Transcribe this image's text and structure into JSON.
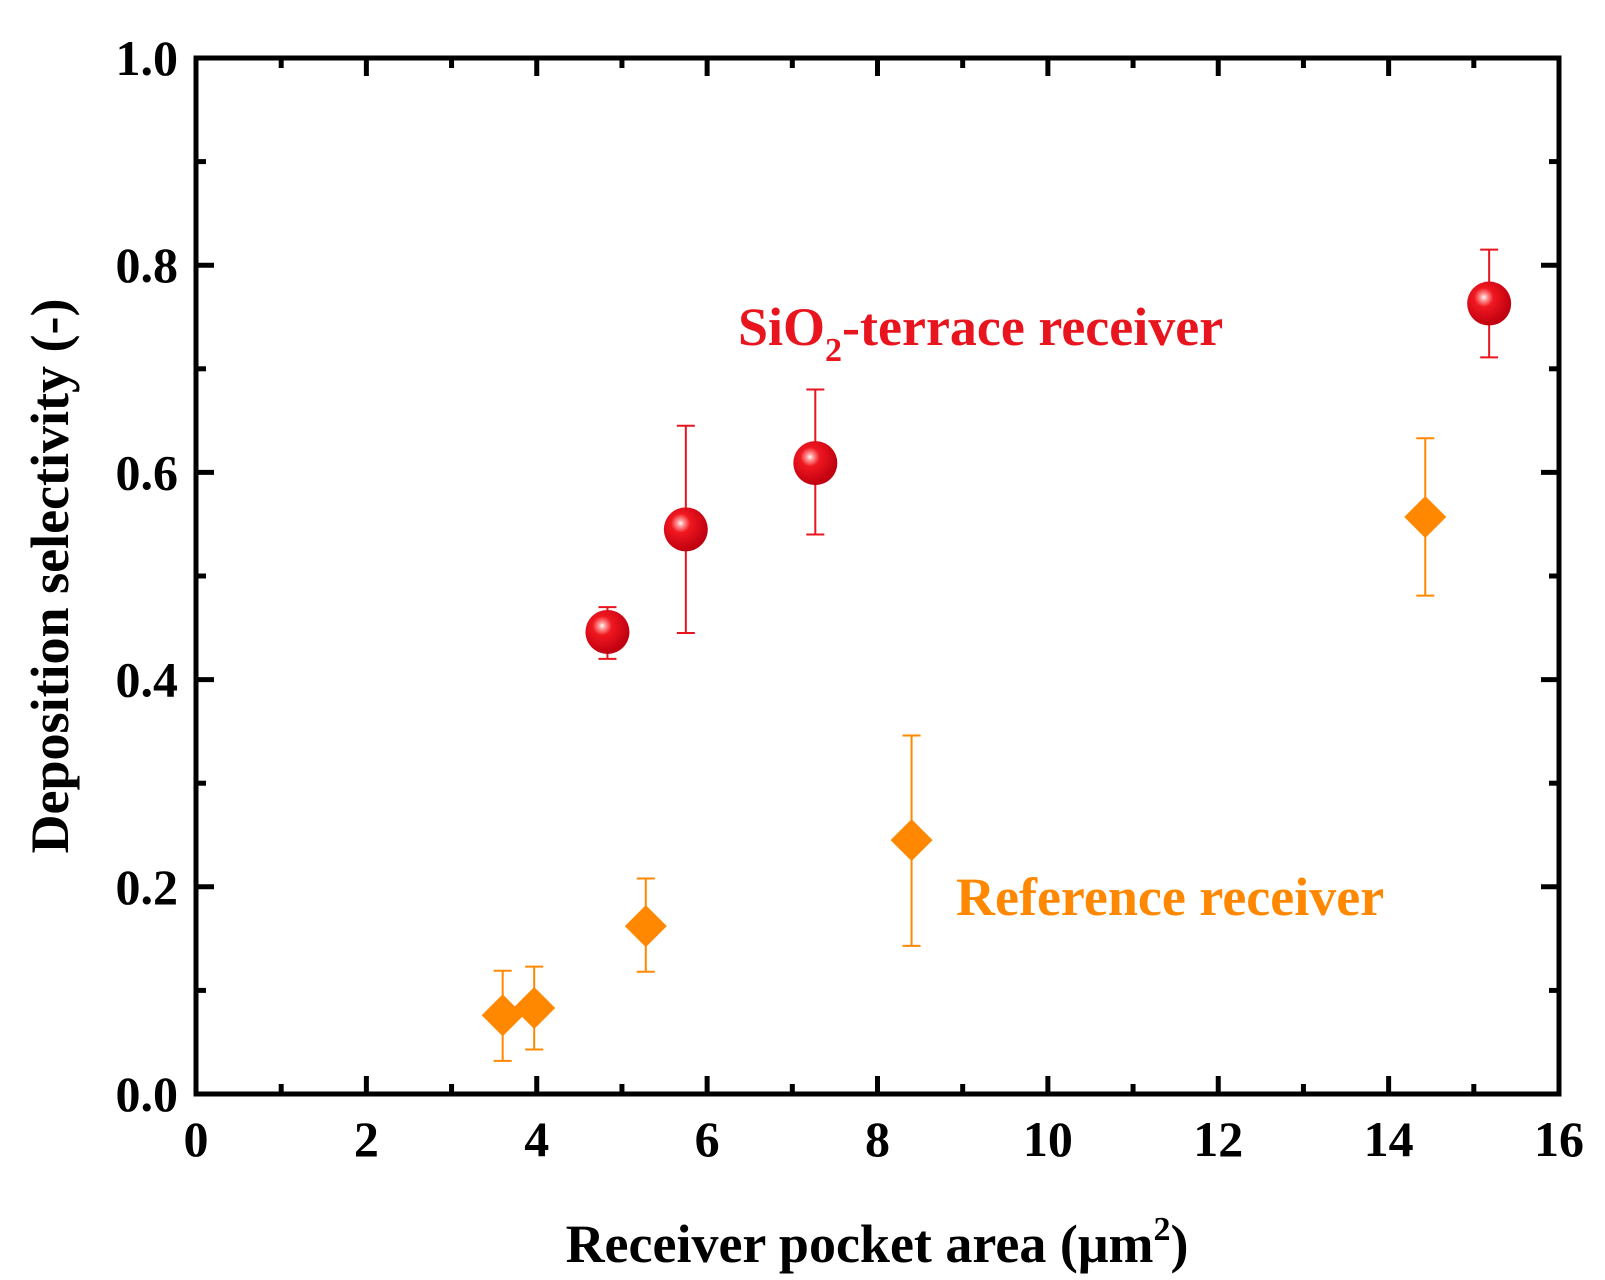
{
  "chart_data": {
    "type": "scatter",
    "title": "",
    "xlabel": "Receiver pocket area (μm",
    "xlabel_sup": "2",
    "xlabel_end": ")",
    "ylabel": "Deposition selectivity (-)",
    "xlim": [
      0,
      16
    ],
    "ylim": [
      0,
      1.0
    ],
    "x_ticks": [
      0,
      2,
      4,
      6,
      8,
      10,
      12,
      14,
      16
    ],
    "x_tick_labels": [
      "0",
      "2",
      "4",
      "6",
      "8",
      "10",
      "12",
      "14",
      "16"
    ],
    "y_ticks": [
      0,
      0.2,
      0.4,
      0.6,
      0.8,
      1.0
    ],
    "y_tick_labels": [
      "0.0",
      "0.2",
      "0.4",
      "0.6",
      "0.8",
      "1.0"
    ],
    "grid": false,
    "series": [
      {
        "name": "SiO2-terrace receiver",
        "color": "#e8141e",
        "marker": "sphere",
        "points": [
          {
            "x": 4.83,
            "y": 0.446,
            "err_low": 0.42,
            "err_high": 0.47
          },
          {
            "x": 5.75,
            "y": 0.545,
            "err_low": 0.445,
            "err_high": 0.645
          },
          {
            "x": 7.27,
            "y": 0.609,
            "err_low": 0.54,
            "err_high": 0.68
          },
          {
            "x": 15.18,
            "y": 0.763,
            "err_low": 0.711,
            "err_high": 0.815
          }
        ]
      },
      {
        "name": "Reference receiver",
        "color": "#ff8800",
        "marker": "diamond",
        "points": [
          {
            "x": 3.6,
            "y": 0.076,
            "err_low": 0.032,
            "err_high": 0.119
          },
          {
            "x": 3.97,
            "y": 0.083,
            "err_low": 0.043,
            "err_high": 0.123
          },
          {
            "x": 5.28,
            "y": 0.162,
            "err_low": 0.118,
            "err_high": 0.208
          },
          {
            "x": 8.4,
            "y": 0.245,
            "err_low": 0.143,
            "err_high": 0.346
          },
          {
            "x": 14.43,
            "y": 0.557,
            "err_low": 0.481,
            "err_high": 0.633
          }
        ]
      }
    ],
    "annotations": [
      {
        "text_main": "SiO",
        "text_sub": "2",
        "text_rest": "-terrace receiver",
        "color": "#e8141e"
      },
      {
        "text": "Reference receiver",
        "color": "#ff8800"
      }
    ]
  }
}
